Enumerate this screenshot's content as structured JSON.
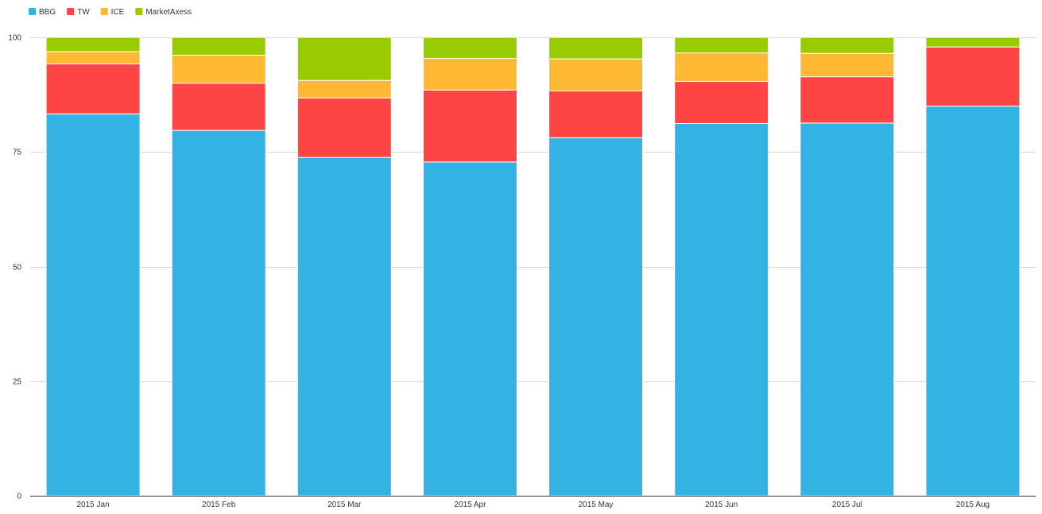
{
  "chart_data": {
    "type": "bar",
    "stacked": true,
    "categories": [
      "2015 Jan",
      "2015 Feb",
      "2015 Mar",
      "2015 Apr",
      "2015 May",
      "2015 Jun",
      "2015 Jul",
      "2015 Aug"
    ],
    "series": [
      {
        "name": "BBG",
        "color": "#33b3e4",
        "values": [
          83.3,
          79.7,
          73.8,
          72.8,
          78.1,
          81.2,
          81.3,
          85.0
        ]
      },
      {
        "name": "TW",
        "color": "#ff4444",
        "values": [
          10.9,
          10.3,
          13.0,
          15.7,
          10.2,
          9.2,
          10.1,
          12.9
        ]
      },
      {
        "name": "ICE",
        "color": "#ffb833",
        "values": [
          2.7,
          6.1,
          3.8,
          6.9,
          7.0,
          6.2,
          5.1,
          0.0
        ]
      },
      {
        "name": "MarketAxess",
        "color": "#99cc00",
        "values": [
          3.1,
          3.9,
          9.4,
          4.6,
          4.7,
          3.4,
          3.5,
          2.1
        ]
      }
    ],
    "yticks": [
      0,
      25,
      50,
      75,
      100
    ],
    "ylim": [
      0,
      100
    ],
    "title": "",
    "xlabel": "",
    "ylabel": "",
    "grid": true,
    "legend_position": "top-left"
  }
}
